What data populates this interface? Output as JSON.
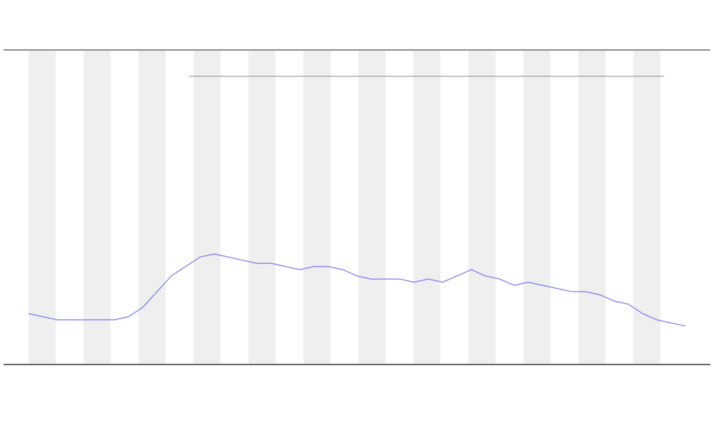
{
  "chart_data": {
    "type": "line",
    "color": "#6f74e8",
    "x": [
      0,
      1,
      2,
      3,
      4,
      5,
      6,
      7,
      8,
      9,
      10,
      11,
      12,
      13,
      14,
      15,
      16,
      17,
      18,
      19,
      20,
      21,
      22,
      23,
      24,
      25,
      26,
      27,
      28,
      29,
      30,
      31,
      32,
      33,
      34,
      35,
      36,
      37,
      38,
      39,
      40,
      41,
      42,
      43,
      44,
      45,
      46
    ],
    "values": [
      16,
      15,
      14,
      14,
      14,
      14,
      14,
      15,
      18,
      23,
      28,
      31,
      34,
      35,
      34,
      33,
      32,
      32,
      31,
      30,
      31,
      31,
      30,
      28,
      27,
      27,
      27,
      26,
      27,
      26,
      28,
      30,
      28,
      27,
      25,
      26,
      25,
      24,
      23,
      23,
      22,
      20,
      19,
      16,
      14,
      13,
      12
    ],
    "xlim": [
      0,
      46
    ],
    "ylim": [
      0,
      100
    ]
  }
}
